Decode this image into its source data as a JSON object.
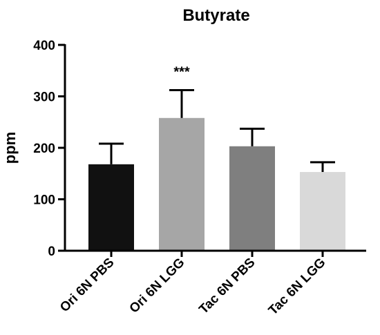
{
  "chart_data": {
    "type": "bar",
    "title": "Butyrate",
    "xlabel": "",
    "ylabel": "ppm",
    "ylim": [
      0,
      400
    ],
    "yticks": [
      0,
      100,
      200,
      300,
      400
    ],
    "categories": [
      "Ori 6N PBS",
      "Ori 6N LGG",
      "Tac 6N PBS",
      "Tac 6N LGG"
    ],
    "values": [
      168,
      258,
      203,
      153
    ],
    "errors": [
      40,
      54,
      34,
      19
    ],
    "colors": [
      "#111111",
      "#a6a6a6",
      "#7f7f7f",
      "#d9d9d9"
    ],
    "annotations": [
      {
        "category_index": 1,
        "text": "***"
      }
    ],
    "grid": false,
    "legend": "none"
  }
}
